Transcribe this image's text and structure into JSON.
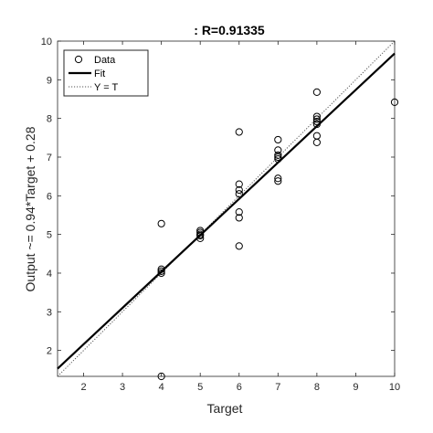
{
  "chart_data": {
    "type": "scatter",
    "title": ": R=0.91335",
    "xlabel": "Target",
    "ylabel": "Output ~= 0.94*Target + 0.28",
    "xlim": [
      1.33,
      10
    ],
    "ylim": [
      1.33,
      10
    ],
    "xticks": [
      2,
      3,
      4,
      5,
      6,
      7,
      8,
      9,
      10
    ],
    "yticks": [
      2,
      3,
      4,
      5,
      6,
      7,
      8,
      9,
      10
    ],
    "grid": false,
    "legend_position": "top-left",
    "series": [
      {
        "name": "Data",
        "style": "circle-marker",
        "points": [
          [
            4,
            5.28
          ],
          [
            4,
            4.1
          ],
          [
            4,
            4.05
          ],
          [
            4,
            4.0
          ],
          [
            4,
            1.33
          ],
          [
            5,
            5.1
          ],
          [
            5,
            5.05
          ],
          [
            5,
            5.0
          ],
          [
            5,
            4.97
          ],
          [
            5,
            4.9
          ],
          [
            6,
            7.65
          ],
          [
            6,
            6.3
          ],
          [
            6,
            6.15
          ],
          [
            6,
            6.05
          ],
          [
            6,
            5.58
          ],
          [
            6,
            5.43
          ],
          [
            6,
            4.7
          ],
          [
            7,
            7.45
          ],
          [
            7,
            7.18
          ],
          [
            7,
            7.05
          ],
          [
            7,
            7.0
          ],
          [
            7,
            6.95
          ],
          [
            7,
            6.45
          ],
          [
            7,
            6.38
          ],
          [
            8,
            8.68
          ],
          [
            8,
            8.05
          ],
          [
            8,
            7.98
          ],
          [
            8,
            7.92
          ],
          [
            8,
            7.85
          ],
          [
            8,
            7.55
          ],
          [
            8,
            7.38
          ],
          [
            10,
            8.42
          ]
        ]
      },
      {
        "name": "Fit",
        "style": "solid-line",
        "slope": 0.94,
        "intercept": 0.28
      },
      {
        "name": "Y = T",
        "style": "dotted-line",
        "slope": 1,
        "intercept": 0
      }
    ],
    "colors": {
      "axes": "#262626",
      "markers": "#000000",
      "fit": "#000000",
      "identity": "#555555"
    }
  }
}
